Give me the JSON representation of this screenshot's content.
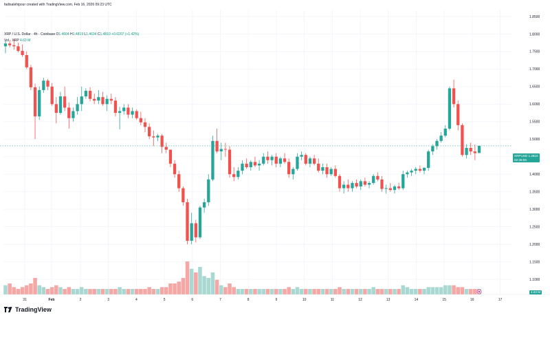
{
  "header": {
    "author": "fadisalehipour created with TradingView.com, Feb 16, 2026 09:23 UTC",
    "symbol": "XRP / U.S. Dollar · 4h · Coinbase",
    "o_label": "O",
    "o": "1.4604",
    "h_label": "H",
    "h": "1.4819",
    "l_label": "L",
    "l": "1.4634",
    "c_label": "C",
    "c": "1.4810",
    "change": "+0.0207 (+1.42%)",
    "vol_label": "Vol · XRP",
    "vol": "4.63 M"
  },
  "price_tag": {
    "symbol": "XRPUSD",
    "price": "1.4810",
    "countdown": "02:36:55",
    "color": "#26a69a"
  },
  "volume_tag": {
    "value": "4.63 M",
    "color": "#26a69a"
  },
  "brand": {
    "name": "TradingView"
  },
  "colors": {
    "up": "#26a69a",
    "down": "#ef5350",
    "vol_up": "#a8d8d1",
    "vol_down": "#f5a7a5",
    "grid": "#f0f3fa",
    "current": "#26a69a"
  },
  "chart_data": {
    "type": "candlestick",
    "timeframe": "4h",
    "x_ticks": [
      "31",
      "Feb",
      "2",
      "3",
      "4",
      "5",
      "6",
      "7",
      "8",
      "9",
      "10",
      "11",
      "12",
      "13",
      "14",
      "15",
      "16",
      "17"
    ],
    "y_ticks": [
      "1.8500",
      "1.8000",
      "1.7500",
      "1.7000",
      "1.6500",
      "1.6000",
      "1.5500",
      "1.5000",
      "1.4500",
      "1.4000",
      "1.3500",
      "1.3000",
      "1.2500",
      "1.2000",
      "1.1500",
      "1.1000"
    ],
    "ylim": [
      1.08,
      1.87
    ],
    "last_price": 1.481,
    "candles": [
      {
        "o": 1.765,
        "h": 1.781,
        "l": 1.745,
        "c": 1.773,
        "v": 5
      },
      {
        "o": 1.773,
        "h": 1.782,
        "l": 1.762,
        "c": 1.768,
        "v": 6
      },
      {
        "o": 1.768,
        "h": 1.785,
        "l": 1.755,
        "c": 1.765,
        "v": 4
      },
      {
        "o": 1.765,
        "h": 1.775,
        "l": 1.748,
        "c": 1.752,
        "v": 3
      },
      {
        "o": 1.752,
        "h": 1.77,
        "l": 1.735,
        "c": 1.74,
        "v": 4
      },
      {
        "o": 1.74,
        "h": 1.75,
        "l": 1.7,
        "c": 1.705,
        "v": 5
      },
      {
        "o": 1.705,
        "h": 1.712,
        "l": 1.64,
        "c": 1.648,
        "v": 6
      },
      {
        "o": 1.648,
        "h": 1.658,
        "l": 1.5,
        "c": 1.565,
        "v": 9
      },
      {
        "o": 1.565,
        "h": 1.65,
        "l": 1.555,
        "c": 1.64,
        "v": 5
      },
      {
        "o": 1.64,
        "h": 1.675,
        "l": 1.632,
        "c": 1.667,
        "v": 4
      },
      {
        "o": 1.667,
        "h": 1.672,
        "l": 1.64,
        "c": 1.65,
        "v": 3
      },
      {
        "o": 1.65,
        "h": 1.66,
        "l": 1.595,
        "c": 1.6,
        "v": 4
      },
      {
        "o": 1.6,
        "h": 1.62,
        "l": 1.545,
        "c": 1.575,
        "v": 5
      },
      {
        "o": 1.575,
        "h": 1.635,
        "l": 1.57,
        "c": 1.622,
        "v": 4
      },
      {
        "o": 1.622,
        "h": 1.65,
        "l": 1.58,
        "c": 1.59,
        "v": 3
      },
      {
        "o": 1.59,
        "h": 1.605,
        "l": 1.53,
        "c": 1.56,
        "v": 4
      },
      {
        "o": 1.56,
        "h": 1.59,
        "l": 1.55,
        "c": 1.58,
        "v": 3
      },
      {
        "o": 1.58,
        "h": 1.62,
        "l": 1.57,
        "c": 1.6,
        "v": 3
      },
      {
        "o": 1.6,
        "h": 1.65,
        "l": 1.58,
        "c": 1.622,
        "v": 4
      },
      {
        "o": 1.622,
        "h": 1.645,
        "l": 1.615,
        "c": 1.638,
        "v": 3
      },
      {
        "o": 1.638,
        "h": 1.648,
        "l": 1.608,
        "c": 1.615,
        "v": 3
      },
      {
        "o": 1.615,
        "h": 1.63,
        "l": 1.6,
        "c": 1.61,
        "v": 3
      },
      {
        "o": 1.61,
        "h": 1.64,
        "l": 1.6,
        "c": 1.62,
        "v": 3
      },
      {
        "o": 1.62,
        "h": 1.635,
        "l": 1.595,
        "c": 1.6,
        "v": 3
      },
      {
        "o": 1.6,
        "h": 1.625,
        "l": 1.58,
        "c": 1.615,
        "v": 3
      },
      {
        "o": 1.615,
        "h": 1.63,
        "l": 1.6,
        "c": 1.61,
        "v": 3
      },
      {
        "o": 1.61,
        "h": 1.62,
        "l": 1.565,
        "c": 1.575,
        "v": 3
      },
      {
        "o": 1.575,
        "h": 1.592,
        "l": 1.528,
        "c": 1.58,
        "v": 4
      },
      {
        "o": 1.58,
        "h": 1.6,
        "l": 1.57,
        "c": 1.59,
        "v": 3
      },
      {
        "o": 1.59,
        "h": 1.6,
        "l": 1.56,
        "c": 1.57,
        "v": 3
      },
      {
        "o": 1.57,
        "h": 1.59,
        "l": 1.56,
        "c": 1.58,
        "v": 3
      },
      {
        "o": 1.58,
        "h": 1.585,
        "l": 1.555,
        "c": 1.56,
        "v": 3
      },
      {
        "o": 1.56,
        "h": 1.578,
        "l": 1.54,
        "c": 1.548,
        "v": 3
      },
      {
        "o": 1.548,
        "h": 1.56,
        "l": 1.52,
        "c": 1.535,
        "v": 3
      },
      {
        "o": 1.535,
        "h": 1.545,
        "l": 1.5,
        "c": 1.508,
        "v": 4
      },
      {
        "o": 1.508,
        "h": 1.525,
        "l": 1.48,
        "c": 1.505,
        "v": 3
      },
      {
        "o": 1.505,
        "h": 1.515,
        "l": 1.495,
        "c": 1.51,
        "v": 3
      },
      {
        "o": 1.51,
        "h": 1.515,
        "l": 1.46,
        "c": 1.478,
        "v": 4
      },
      {
        "o": 1.478,
        "h": 1.49,
        "l": 1.46,
        "c": 1.47,
        "v": 4
      },
      {
        "o": 1.47,
        "h": 1.47,
        "l": 1.42,
        "c": 1.43,
        "v": 6
      },
      {
        "o": 1.43,
        "h": 1.44,
        "l": 1.39,
        "c": 1.4,
        "v": 6
      },
      {
        "o": 1.4,
        "h": 1.41,
        "l": 1.35,
        "c": 1.36,
        "v": 7
      },
      {
        "o": 1.36,
        "h": 1.365,
        "l": 1.31,
        "c": 1.32,
        "v": 9
      },
      {
        "o": 1.32,
        "h": 1.33,
        "l": 1.2,
        "c": 1.21,
        "v": 18
      },
      {
        "o": 1.21,
        "h": 1.29,
        "l": 1.2,
        "c": 1.26,
        "v": 14
      },
      {
        "o": 1.26,
        "h": 1.27,
        "l": 1.205,
        "c": 1.22,
        "v": 12
      },
      {
        "o": 1.22,
        "h": 1.31,
        "l": 1.215,
        "c": 1.305,
        "v": 15
      },
      {
        "o": 1.305,
        "h": 1.33,
        "l": 1.29,
        "c": 1.32,
        "v": 10
      },
      {
        "o": 1.32,
        "h": 1.4,
        "l": 1.31,
        "c": 1.385,
        "v": 9
      },
      {
        "o": 1.385,
        "h": 1.51,
        "l": 1.38,
        "c": 1.495,
        "v": 12
      },
      {
        "o": 1.495,
        "h": 1.53,
        "l": 1.46,
        "c": 1.465,
        "v": 8
      },
      {
        "o": 1.465,
        "h": 1.49,
        "l": 1.44,
        "c": 1.472,
        "v": 5
      },
      {
        "o": 1.472,
        "h": 1.49,
        "l": 1.45,
        "c": 1.47,
        "v": 4
      },
      {
        "o": 1.47,
        "h": 1.48,
        "l": 1.39,
        "c": 1.4,
        "v": 6
      },
      {
        "o": 1.4,
        "h": 1.42,
        "l": 1.38,
        "c": 1.392,
        "v": 4
      },
      {
        "o": 1.392,
        "h": 1.42,
        "l": 1.385,
        "c": 1.41,
        "v": 3
      },
      {
        "o": 1.41,
        "h": 1.44,
        "l": 1.4,
        "c": 1.43,
        "v": 3
      },
      {
        "o": 1.43,
        "h": 1.445,
        "l": 1.415,
        "c": 1.42,
        "v": 3
      },
      {
        "o": 1.42,
        "h": 1.44,
        "l": 1.41,
        "c": 1.435,
        "v": 3
      },
      {
        "o": 1.435,
        "h": 1.45,
        "l": 1.42,
        "c": 1.425,
        "v": 3
      },
      {
        "o": 1.425,
        "h": 1.44,
        "l": 1.41,
        "c": 1.43,
        "v": 3
      },
      {
        "o": 1.43,
        "h": 1.46,
        "l": 1.425,
        "c": 1.45,
        "v": 3
      },
      {
        "o": 1.45,
        "h": 1.465,
        "l": 1.43,
        "c": 1.44,
        "v": 3
      },
      {
        "o": 1.44,
        "h": 1.455,
        "l": 1.425,
        "c": 1.45,
        "v": 3
      },
      {
        "o": 1.45,
        "h": 1.46,
        "l": 1.42,
        "c": 1.43,
        "v": 3
      },
      {
        "o": 1.43,
        "h": 1.45,
        "l": 1.42,
        "c": 1.445,
        "v": 3
      },
      {
        "o": 1.445,
        "h": 1.46,
        "l": 1.43,
        "c": 1.435,
        "v": 3
      },
      {
        "o": 1.435,
        "h": 1.445,
        "l": 1.39,
        "c": 1.4,
        "v": 4
      },
      {
        "o": 1.4,
        "h": 1.42,
        "l": 1.385,
        "c": 1.415,
        "v": 3
      },
      {
        "o": 1.415,
        "h": 1.46,
        "l": 1.41,
        "c": 1.45,
        "v": 4
      },
      {
        "o": 1.45,
        "h": 1.465,
        "l": 1.44,
        "c": 1.455,
        "v": 3
      },
      {
        "o": 1.455,
        "h": 1.46,
        "l": 1.425,
        "c": 1.43,
        "v": 3
      },
      {
        "o": 1.43,
        "h": 1.45,
        "l": 1.42,
        "c": 1.445,
        "v": 3
      },
      {
        "o": 1.445,
        "h": 1.455,
        "l": 1.425,
        "c": 1.43,
        "v": 3
      },
      {
        "o": 1.43,
        "h": 1.445,
        "l": 1.405,
        "c": 1.41,
        "v": 3
      },
      {
        "o": 1.41,
        "h": 1.43,
        "l": 1.4,
        "c": 1.42,
        "v": 3
      },
      {
        "o": 1.42,
        "h": 1.43,
        "l": 1.39,
        "c": 1.4,
        "v": 3
      },
      {
        "o": 1.4,
        "h": 1.42,
        "l": 1.395,
        "c": 1.415,
        "v": 3
      },
      {
        "o": 1.415,
        "h": 1.425,
        "l": 1.39,
        "c": 1.395,
        "v": 3
      },
      {
        "o": 1.395,
        "h": 1.4,
        "l": 1.35,
        "c": 1.36,
        "v": 4
      },
      {
        "o": 1.36,
        "h": 1.38,
        "l": 1.345,
        "c": 1.37,
        "v": 3
      },
      {
        "o": 1.37,
        "h": 1.385,
        "l": 1.35,
        "c": 1.36,
        "v": 3
      },
      {
        "o": 1.36,
        "h": 1.38,
        "l": 1.35,
        "c": 1.375,
        "v": 3
      },
      {
        "o": 1.375,
        "h": 1.385,
        "l": 1.36,
        "c": 1.365,
        "v": 3
      },
      {
        "o": 1.365,
        "h": 1.385,
        "l": 1.355,
        "c": 1.38,
        "v": 3
      },
      {
        "o": 1.38,
        "h": 1.39,
        "l": 1.365,
        "c": 1.37,
        "v": 3
      },
      {
        "o": 1.37,
        "h": 1.38,
        "l": 1.36,
        "c": 1.375,
        "v": 3
      },
      {
        "o": 1.375,
        "h": 1.4,
        "l": 1.37,
        "c": 1.395,
        "v": 4
      },
      {
        "o": 1.395,
        "h": 1.405,
        "l": 1.38,
        "c": 1.385,
        "v": 3
      },
      {
        "o": 1.385,
        "h": 1.395,
        "l": 1.35,
        "c": 1.358,
        "v": 3
      },
      {
        "o": 1.358,
        "h": 1.37,
        "l": 1.345,
        "c": 1.36,
        "v": 3
      },
      {
        "o": 1.36,
        "h": 1.375,
        "l": 1.35,
        "c": 1.355,
        "v": 3
      },
      {
        "o": 1.355,
        "h": 1.37,
        "l": 1.345,
        "c": 1.365,
        "v": 3
      },
      {
        "o": 1.365,
        "h": 1.375,
        "l": 1.355,
        "c": 1.36,
        "v": 3
      },
      {
        "o": 1.36,
        "h": 1.41,
        "l": 1.355,
        "c": 1.4,
        "v": 5
      },
      {
        "o": 1.4,
        "h": 1.41,
        "l": 1.39,
        "c": 1.405,
        "v": 4
      },
      {
        "o": 1.405,
        "h": 1.415,
        "l": 1.395,
        "c": 1.41,
        "v": 3
      },
      {
        "o": 1.41,
        "h": 1.42,
        "l": 1.4,
        "c": 1.415,
        "v": 3
      },
      {
        "o": 1.415,
        "h": 1.425,
        "l": 1.405,
        "c": 1.41,
        "v": 3
      },
      {
        "o": 1.41,
        "h": 1.42,
        "l": 1.4,
        "c": 1.418,
        "v": 3
      },
      {
        "o": 1.418,
        "h": 1.47,
        "l": 1.41,
        "c": 1.465,
        "v": 4
      },
      {
        "o": 1.465,
        "h": 1.485,
        "l": 1.455,
        "c": 1.48,
        "v": 4
      },
      {
        "o": 1.48,
        "h": 1.5,
        "l": 1.47,
        "c": 1.495,
        "v": 4
      },
      {
        "o": 1.495,
        "h": 1.52,
        "l": 1.49,
        "c": 1.51,
        "v": 4
      },
      {
        "o": 1.51,
        "h": 1.54,
        "l": 1.505,
        "c": 1.53,
        "v": 5
      },
      {
        "o": 1.53,
        "h": 1.65,
        "l": 1.525,
        "c": 1.645,
        "v": 5
      },
      {
        "o": 1.645,
        "h": 1.67,
        "l": 1.59,
        "c": 1.6,
        "v": 5
      },
      {
        "o": 1.6,
        "h": 1.61,
        "l": 1.525,
        "c": 1.54,
        "v": 4
      },
      {
        "o": 1.54,
        "h": 1.545,
        "l": 1.45,
        "c": 1.455,
        "v": 4
      },
      {
        "o": 1.455,
        "h": 1.485,
        "l": 1.445,
        "c": 1.475,
        "v": 3
      },
      {
        "o": 1.475,
        "h": 1.49,
        "l": 1.455,
        "c": 1.465,
        "v": 3
      },
      {
        "o": 1.465,
        "h": 1.485,
        "l": 1.44,
        "c": 1.46,
        "v": 3
      },
      {
        "o": 1.4604,
        "h": 1.4819,
        "l": 1.4634,
        "c": 1.481,
        "v": 3
      }
    ]
  }
}
